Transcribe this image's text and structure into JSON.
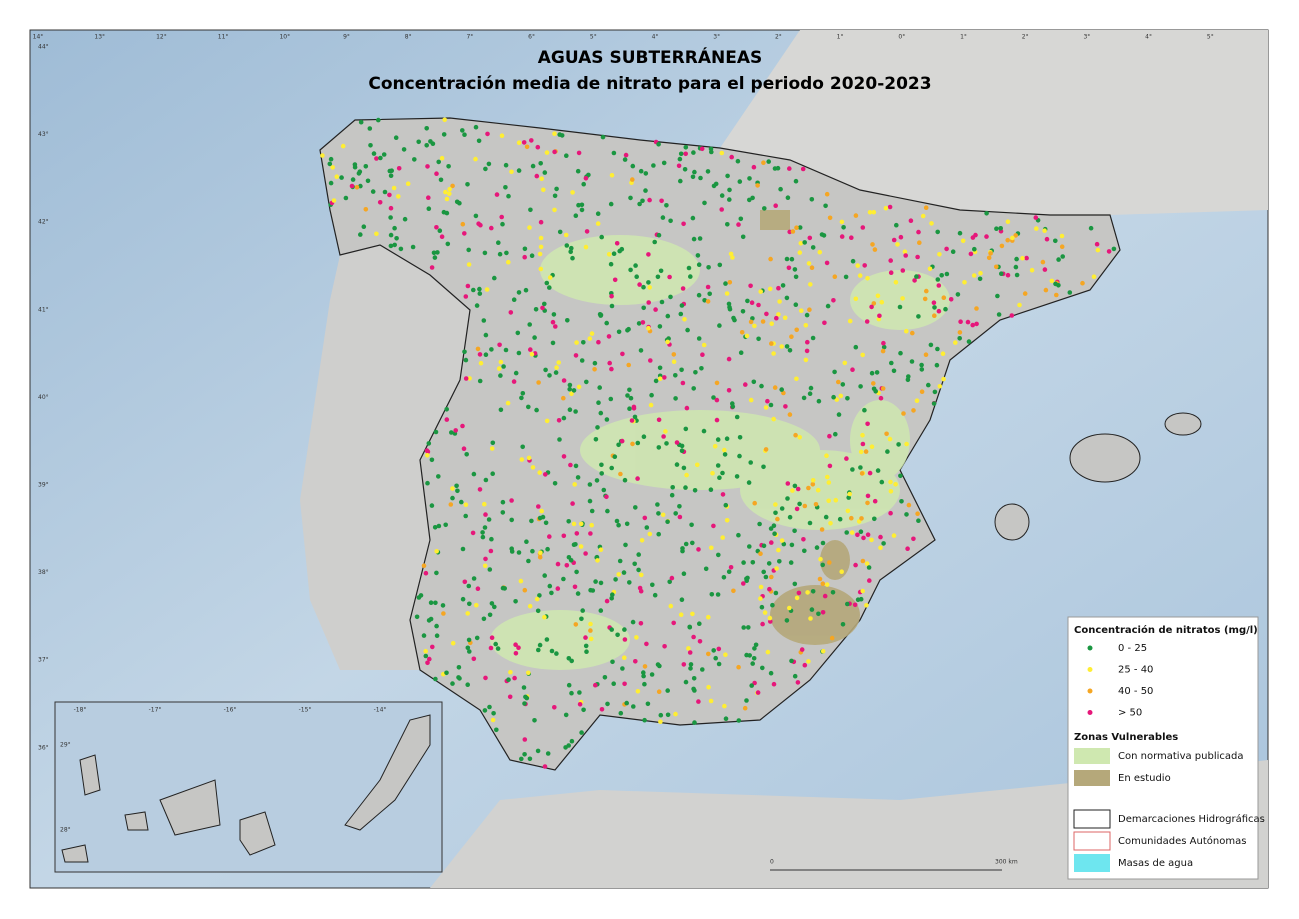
{
  "header": {
    "title": "AGUAS SUBTERRÁNEAS",
    "subtitle": "Concentración media de nitrato para el periodo 2020-2023"
  },
  "graticule": {
    "top": [
      "14°",
      "13°",
      "12°",
      "11°",
      "10°",
      "9°",
      "8°",
      "7°",
      "6°",
      "5°",
      "4°",
      "3°",
      "2°",
      "1°",
      "0°",
      "1°",
      "2°",
      "3°",
      "4°",
      "5°"
    ],
    "left": [
      "44°",
      "43°",
      "42°",
      "41°",
      "40°",
      "39°",
      "38°",
      "37°",
      "36°"
    ]
  },
  "inset": {
    "top": [
      "-18°",
      "-17°",
      "-16°",
      "-15°",
      "-14°"
    ],
    "left": [
      "29°",
      "28°"
    ]
  },
  "legend": {
    "title": "Concentración de nitratos (mg/l)",
    "classes": [
      "0 - 25",
      "25 - 40",
      "40 - 50",
      "> 50"
    ],
    "zones_title": "Zonas Vulnerables",
    "zones": [
      "Con normativa publicada",
      "En estudio"
    ],
    "lines": [
      "Demarcaciones Hidrográficas",
      "Comunidades Autónomas",
      "Masas de agua"
    ]
  },
  "scale": {
    "start": "0",
    "end": "300 km"
  }
}
